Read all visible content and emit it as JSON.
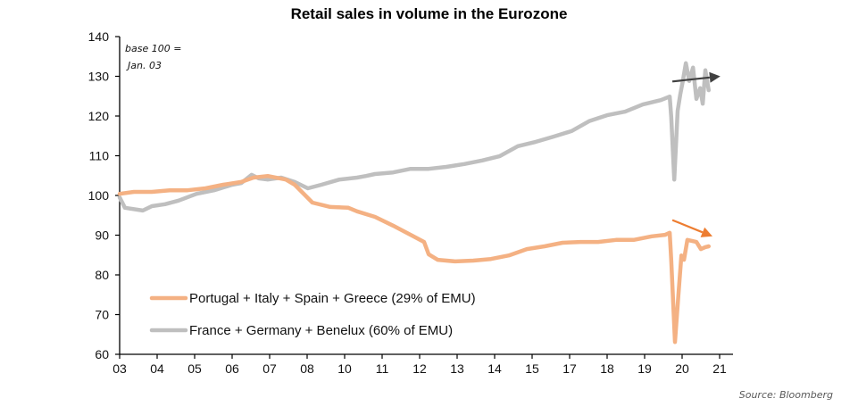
{
  "chart_data": {
    "type": "line",
    "title": "Retail sales in volume in the Eurozone",
    "annotation": [
      "base 100 =",
      "Jan. 03"
    ],
    "source": "Source: Bloomberg",
    "xlabel": "",
    "ylabel": "",
    "ylim": [
      60,
      140
    ],
    "yticks": [
      60,
      70,
      80,
      90,
      100,
      110,
      120,
      130,
      140
    ],
    "xtick_labels": [
      "03",
      "04",
      "05",
      "06",
      "07",
      "08",
      "10",
      "11",
      "12",
      "13",
      "14",
      "15",
      "17",
      "18",
      "19",
      "20",
      "21"
    ],
    "x_units": "tick index (0 = '03', 16 = '21')",
    "grid": false,
    "legend_position": "bottom-left",
    "series": [
      {
        "name": "Portugal + Italy + Spain + Greece (29% of EMU)",
        "color": "#F4B183",
        "points": [
          [
            0,
            100.4
          ],
          [
            0.38,
            100.9
          ],
          [
            0.86,
            100.9
          ],
          [
            1.33,
            101.3
          ],
          [
            1.81,
            101.3
          ],
          [
            2.29,
            101.8
          ],
          [
            2.76,
            102.7
          ],
          [
            3.24,
            103.4
          ],
          [
            3.57,
            104.5
          ],
          [
            3.95,
            104.9
          ],
          [
            4.43,
            104.0
          ],
          [
            4.67,
            102.7
          ],
          [
            5.14,
            98.2
          ],
          [
            5.62,
            97.1
          ],
          [
            6.1,
            96.9
          ],
          [
            6.33,
            96.0
          ],
          [
            6.81,
            94.6
          ],
          [
            7.29,
            92.4
          ],
          [
            7.76,
            90.1
          ],
          [
            8.12,
            88.3
          ],
          [
            8.24,
            85.2
          ],
          [
            8.48,
            83.8
          ],
          [
            8.95,
            83.4
          ],
          [
            9.43,
            83.6
          ],
          [
            9.9,
            84.0
          ],
          [
            10.38,
            84.9
          ],
          [
            10.86,
            86.5
          ],
          [
            11.33,
            87.2
          ],
          [
            11.81,
            88.1
          ],
          [
            12.29,
            88.3
          ],
          [
            12.76,
            88.3
          ],
          [
            13.24,
            88.8
          ],
          [
            13.71,
            88.8
          ],
          [
            14.19,
            89.7
          ],
          [
            14.55,
            90.1
          ],
          [
            14.67,
            90.6
          ],
          [
            14.71,
            83.8
          ],
          [
            14.81,
            63.1
          ],
          [
            14.9,
            74.8
          ],
          [
            14.98,
            84.9
          ],
          [
            15.05,
            83.8
          ],
          [
            15.14,
            88.8
          ],
          [
            15.38,
            88.3
          ],
          [
            15.5,
            86.5
          ],
          [
            15.62,
            87.0
          ],
          [
            15.71,
            87.2
          ]
        ]
      },
      {
        "name": "France + Germany + Benelux (60% of EMU)",
        "color": "#BFBFBF",
        "points": [
          [
            0,
            99.5
          ],
          [
            0.14,
            96.9
          ],
          [
            0.62,
            96.2
          ],
          [
            0.86,
            97.3
          ],
          [
            1.21,
            97.8
          ],
          [
            1.57,
            98.7
          ],
          [
            2.05,
            100.4
          ],
          [
            2.52,
            101.3
          ],
          [
            3.0,
            102.7
          ],
          [
            3.24,
            103.1
          ],
          [
            3.52,
            105.2
          ],
          [
            3.71,
            104.3
          ],
          [
            3.95,
            104.0
          ],
          [
            4.31,
            104.5
          ],
          [
            4.67,
            103.4
          ],
          [
            5.02,
            101.8
          ],
          [
            5.38,
            102.7
          ],
          [
            5.86,
            104.0
          ],
          [
            6.33,
            104.5
          ],
          [
            6.57,
            104.9
          ],
          [
            6.81,
            105.4
          ],
          [
            7.29,
            105.8
          ],
          [
            7.76,
            106.7
          ],
          [
            8.24,
            106.7
          ],
          [
            8.71,
            107.2
          ],
          [
            9.19,
            107.9
          ],
          [
            9.67,
            108.8
          ],
          [
            10.14,
            109.9
          ],
          [
            10.62,
            112.4
          ],
          [
            11.1,
            113.5
          ],
          [
            11.57,
            114.8
          ],
          [
            12.05,
            116.2
          ],
          [
            12.52,
            118.7
          ],
          [
            13.0,
            120.2
          ],
          [
            13.48,
            121.1
          ],
          [
            13.95,
            122.9
          ],
          [
            14.43,
            124.0
          ],
          [
            14.67,
            124.9
          ],
          [
            14.71,
            119.8
          ],
          [
            14.79,
            104.0
          ],
          [
            14.88,
            121.3
          ],
          [
            14.95,
            125.4
          ],
          [
            15.02,
            128.8
          ],
          [
            15.1,
            133.3
          ],
          [
            15.19,
            128.8
          ],
          [
            15.29,
            132.2
          ],
          [
            15.38,
            124.3
          ],
          [
            15.48,
            127.0
          ],
          [
            15.55,
            123.1
          ],
          [
            15.62,
            131.5
          ],
          [
            15.71,
            126.5
          ]
        ]
      }
    ],
    "trend_arrows": [
      {
        "series": "France + Germany + Benelux (60% of EMU)",
        "direction": "up",
        "color": "#404040",
        "from": [
          14.74,
          128.7
        ],
        "to": [
          16.02,
          130.0
        ]
      },
      {
        "series": "Portugal + Italy + Spain + Greece (29% of EMU)",
        "direction": "down",
        "color": "#ED7D31",
        "from": [
          14.74,
          93.8
        ],
        "to": [
          15.81,
          89.7
        ]
      }
    ]
  }
}
